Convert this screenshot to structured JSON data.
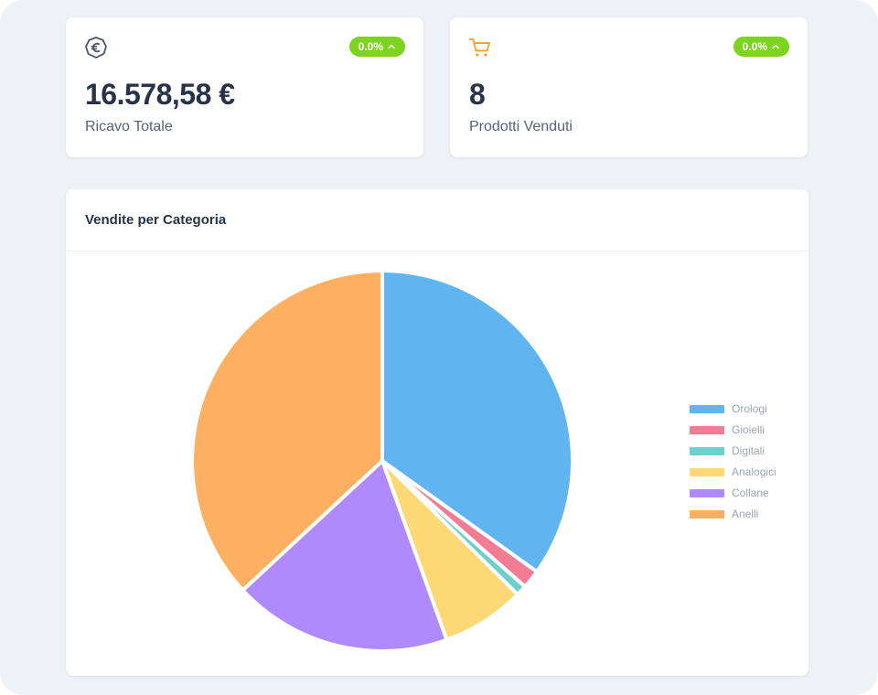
{
  "stats": {
    "revenue": {
      "icon": "euro-icon",
      "value": "16.578,58 €",
      "label": "Ricavo Totale",
      "badge": "0.0%"
    },
    "sold": {
      "icon": "cart-icon",
      "value": "8",
      "label": "Prodotti Venduti",
      "badge": "0.0%"
    }
  },
  "chart": {
    "title": "Vendite per Categoria"
  },
  "colors": {
    "badge": "#7ed321",
    "text_dark": "#283347",
    "icon_dark": "#4a5568",
    "cart": "#f6a13a"
  },
  "chart_data": {
    "type": "pie",
    "title": "Vendite per Categoria",
    "legend_position": "right",
    "start_angle_deg": 0,
    "series": [
      {
        "name": "Orologi",
        "value": 34.9,
        "color": "#60b4ef"
      },
      {
        "name": "Gioielli",
        "value": 1.6,
        "color": "#f47b94"
      },
      {
        "name": "Digitali",
        "value": 0.9,
        "color": "#6fcfcb"
      },
      {
        "name": "Analogici",
        "value": 7.1,
        "color": "#fed875"
      },
      {
        "name": "Collane",
        "value": 18.6,
        "color": "#af8afd"
      },
      {
        "name": "Anelli",
        "value": 36.9,
        "color": "#feb062"
      }
    ]
  }
}
